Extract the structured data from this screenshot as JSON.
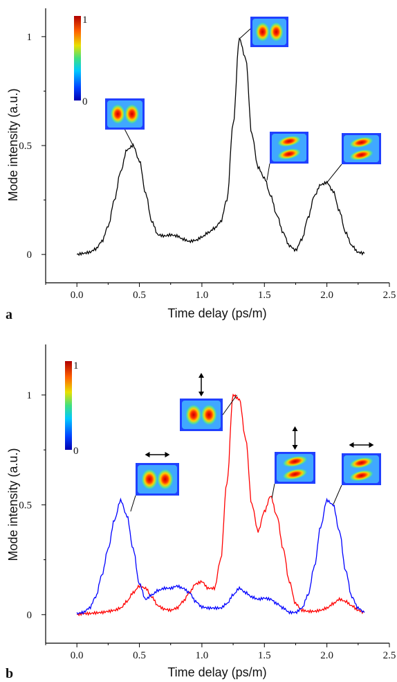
{
  "chart_data": [
    {
      "type": "line",
      "panel_label": "a",
      "xlabel": "Time delay (ps/m)",
      "ylabel": "Mode intensity (a.u.)",
      "xlim": [
        -0.25,
        2.5
      ],
      "ylim": [
        -0.13,
        1.13
      ],
      "x_ticks": [
        "0.0",
        "0.5",
        "1.0",
        "1.5",
        "2.0",
        "2.5"
      ],
      "y_ticks": [
        "0",
        "0.5",
        "1"
      ],
      "colorbar": {
        "min_label": "0",
        "max_label": "1"
      },
      "series": [
        {
          "color": "#000000",
          "x": [
            0.0,
            0.05,
            0.1,
            0.15,
            0.2,
            0.25,
            0.3,
            0.35,
            0.4,
            0.45,
            0.5,
            0.55,
            0.6,
            0.65,
            0.7,
            0.75,
            0.8,
            0.85,
            0.9,
            0.95,
            1.0,
            1.05,
            1.1,
            1.15,
            1.2,
            1.25,
            1.3,
            1.35,
            1.4,
            1.45,
            1.5,
            1.55,
            1.6,
            1.65,
            1.7,
            1.75,
            1.8,
            1.85,
            1.9,
            1.95,
            2.0,
            2.05,
            2.1,
            2.15,
            2.2,
            2.25,
            2.3
          ],
          "y": [
            0.0,
            0.005,
            0.01,
            0.025,
            0.06,
            0.13,
            0.25,
            0.38,
            0.48,
            0.5,
            0.43,
            0.28,
            0.15,
            0.09,
            0.085,
            0.09,
            0.085,
            0.07,
            0.06,
            0.065,
            0.08,
            0.1,
            0.12,
            0.15,
            0.25,
            0.6,
            0.99,
            0.9,
            0.55,
            0.4,
            0.35,
            0.27,
            0.18,
            0.1,
            0.04,
            0.02,
            0.07,
            0.17,
            0.27,
            0.32,
            0.33,
            0.29,
            0.2,
            0.1,
            0.04,
            0.01,
            0.005
          ]
        }
      ],
      "annotations": [
        {
          "x": 0.45,
          "y": 0.5
        },
        {
          "x": 1.3,
          "y": 0.99
        },
        {
          "x": 1.52,
          "y": 0.34
        },
        {
          "x": 2.0,
          "y": 0.33
        }
      ]
    },
    {
      "type": "line",
      "panel_label": "b",
      "xlabel": "Time delay (ps/m)",
      "ylabel": "Mode intensity (a.u.)",
      "xlim": [
        -0.25,
        2.5
      ],
      "ylim": [
        -0.13,
        1.23
      ],
      "x_ticks": [
        "0.0",
        "0.5",
        "1.0",
        "1.5",
        "2.0",
        "2.5"
      ],
      "y_ticks": [
        "0",
        "0.5",
        "1"
      ],
      "colorbar": {
        "min_label": "0",
        "max_label": "1"
      },
      "series": [
        {
          "color": "#ff0000",
          "x": [
            0.0,
            0.05,
            0.1,
            0.15,
            0.2,
            0.25,
            0.3,
            0.35,
            0.4,
            0.45,
            0.5,
            0.55,
            0.6,
            0.65,
            0.7,
            0.75,
            0.8,
            0.85,
            0.9,
            0.95,
            1.0,
            1.05,
            1.1,
            1.15,
            1.2,
            1.25,
            1.3,
            1.35,
            1.4,
            1.45,
            1.5,
            1.55,
            1.6,
            1.65,
            1.7,
            1.75,
            1.8,
            1.85,
            1.9,
            1.95,
            2.0,
            2.05,
            2.1,
            2.15,
            2.2,
            2.25,
            2.3
          ],
          "y": [
            0.0,
            0.005,
            0.005,
            0.008,
            0.01,
            0.015,
            0.02,
            0.03,
            0.06,
            0.1,
            0.13,
            0.12,
            0.08,
            0.04,
            0.025,
            0.02,
            0.03,
            0.06,
            0.1,
            0.14,
            0.15,
            0.12,
            0.12,
            0.25,
            0.6,
            1.0,
            0.98,
            0.8,
            0.5,
            0.38,
            0.47,
            0.54,
            0.45,
            0.3,
            0.15,
            0.05,
            0.02,
            0.015,
            0.015,
            0.02,
            0.03,
            0.05,
            0.07,
            0.06,
            0.04,
            0.02,
            0.01
          ]
        },
        {
          "color": "#0000ff",
          "x": [
            0.0,
            0.05,
            0.1,
            0.15,
            0.2,
            0.25,
            0.3,
            0.35,
            0.4,
            0.45,
            0.5,
            0.55,
            0.6,
            0.65,
            0.7,
            0.75,
            0.8,
            0.85,
            0.9,
            0.95,
            1.0,
            1.05,
            1.1,
            1.15,
            1.2,
            1.25,
            1.3,
            1.35,
            1.4,
            1.45,
            1.5,
            1.55,
            1.6,
            1.65,
            1.7,
            1.75,
            1.8,
            1.85,
            1.9,
            1.95,
            2.0,
            2.05,
            2.1,
            2.15,
            2.2,
            2.25,
            2.3
          ],
          "y": [
            0.005,
            0.01,
            0.03,
            0.08,
            0.18,
            0.3,
            0.43,
            0.52,
            0.45,
            0.3,
            0.14,
            0.07,
            0.09,
            0.11,
            0.12,
            0.12,
            0.13,
            0.12,
            0.1,
            0.06,
            0.035,
            0.03,
            0.03,
            0.03,
            0.05,
            0.09,
            0.12,
            0.1,
            0.08,
            0.07,
            0.075,
            0.07,
            0.05,
            0.03,
            0.01,
            0.01,
            0.03,
            0.09,
            0.22,
            0.4,
            0.52,
            0.5,
            0.38,
            0.2,
            0.08,
            0.03,
            0.01
          ]
        }
      ],
      "annotations": [
        {
          "x": 0.43,
          "y": 0.47,
          "arrow": "horizontal"
        },
        {
          "x": 1.28,
          "y": 1.0,
          "arrow": "vertical"
        },
        {
          "x": 1.56,
          "y": 0.53,
          "arrow": "vertical"
        },
        {
          "x": 2.05,
          "y": 0.5,
          "arrow": "horizontal"
        }
      ]
    }
  ]
}
